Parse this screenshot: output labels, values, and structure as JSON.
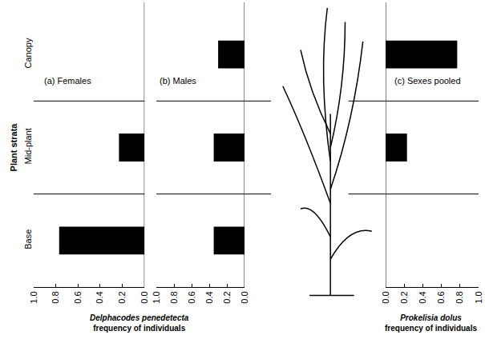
{
  "chart_data": [
    {
      "type": "bar",
      "orientation": "horizontal",
      "title": "(a) Females",
      "ylabel": "Plant strata",
      "xlabel": [
        "Delphacodes penedetecta",
        "frequency of individuals"
      ],
      "categories": [
        "Base",
        "Mid-plant",
        "Canopy"
      ],
      "values": [
        0.77,
        0.23,
        0
      ],
      "color": "#000000",
      "xlim": [
        1,
        0
      ],
      "xticks": [
        {
          "value": 1,
          "label": "1.0"
        },
        0.8,
        0.6,
        0.4,
        0.2,
        {
          "value": 0,
          "label": "0.0"
        }
      ],
      "grid": false
    },
    {
      "type": "bar",
      "orientation": "horizontal",
      "title": "(b) Males",
      "categories": [
        "Base",
        "Mid-plant",
        "Canopy"
      ],
      "values": [
        0.35,
        0.35,
        0.3
      ],
      "color": "#000000",
      "xlim": [
        1,
        0
      ],
      "xticks": [
        {
          "value": 1,
          "label": "1.0"
        },
        0.8,
        0.6,
        0.4,
        0.2,
        {
          "value": 0,
          "label": "0.0"
        }
      ],
      "grid": false
    },
    {
      "type": "bar",
      "orientation": "horizontal",
      "title": "(c) Sexes pooled",
      "xlabel": [
        "Prokelisia dolus",
        "frequency of individuals"
      ],
      "categories": [
        "Base",
        "Mid-plant",
        "Canopy"
      ],
      "values": [
        0,
        0.23,
        0.77
      ],
      "color": "#000000",
      "xlim": [
        0,
        1
      ],
      "xticks": [
        {
          "value": 0,
          "label": "0.0"
        },
        0.2,
        0.4,
        0.6,
        0.8,
        {
          "value": 1,
          "label": "1.0"
        }
      ],
      "grid": false
    }
  ]
}
